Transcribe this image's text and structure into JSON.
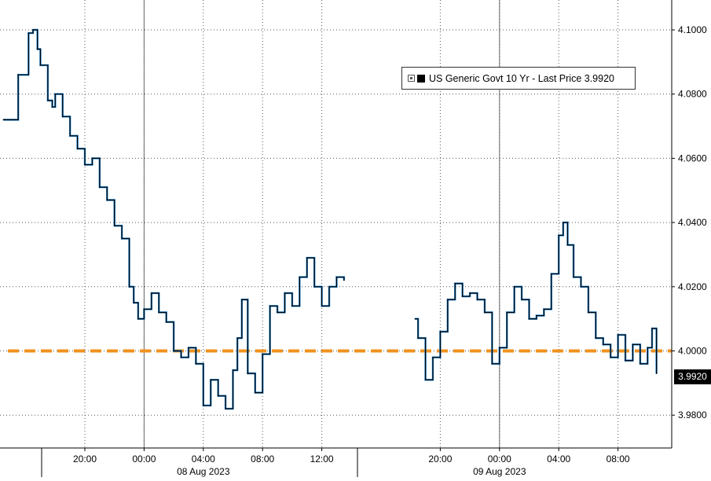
{
  "chart_data": {
    "type": "line",
    "legend": {
      "label": "US Generic Govt 10 Yr - Last Price 3.9920",
      "placement": "top-right"
    },
    "last_price_label": "3.9920",
    "y_ticks": [
      "4.1000",
      "4.0800",
      "4.0600",
      "4.0400",
      "4.0200",
      "4.0000",
      "3.9800"
    ],
    "ylim": [
      3.968,
      4.108
    ],
    "grid": true,
    "reference_line": {
      "value": 4.0,
      "color": "#f0921e",
      "style": "dashed"
    },
    "highlight_ellipse": {
      "x_hours": 45.5,
      "y": 4.0,
      "color": "#35d11f"
    },
    "colors": {
      "line": "#000000",
      "line_highlight": "#1f86d6",
      "grid": "#555555"
    },
    "x_tick_labels": [
      {
        "hours": 0,
        "label": "20:00"
      },
      {
        "hours": 4,
        "label": "00:00"
      },
      {
        "hours": 8,
        "label": "04:00"
      },
      {
        "hours": 12,
        "label": "08:00"
      },
      {
        "hours": 16,
        "label": "12:00"
      },
      {
        "hours": 24,
        "label": "20:00"
      },
      {
        "hours": 28,
        "label": "00:00"
      },
      {
        "hours": 32,
        "label": "04:00"
      },
      {
        "hours": 36,
        "label": "08:00"
      }
    ],
    "date_labels": [
      {
        "hours": 8,
        "label": "08 Aug 2023"
      },
      {
        "hours": 28,
        "label": "09 Aug 2023"
      }
    ],
    "segments": [
      {
        "name": "",
        "x": [
          -5.5,
          -4.5,
          -3.8,
          -3.5,
          -3.2,
          -3.0,
          -2.5,
          -2.2,
          -2.0,
          -1.5,
          -1.0,
          -0.5,
          0.0,
          0.5,
          1.0,
          1.5,
          2.0,
          2.5,
          3.0,
          3.3,
          3.6,
          4.0,
          4.5,
          5.0,
          5.5,
          6.0,
          6.5,
          7.0,
          7.5,
          8.0,
          8.5,
          9.0,
          9.5,
          10.0,
          10.3,
          10.6,
          11.0,
          11.5,
          12.0,
          12.5,
          13.0,
          13.5,
          14.0,
          14.5,
          15.0,
          15.5,
          16.0,
          16.5,
          17.0,
          17.5
        ],
        "y": [
          4.072,
          4.086,
          4.099,
          4.1,
          4.094,
          4.089,
          4.078,
          4.076,
          4.08,
          4.073,
          4.067,
          4.063,
          4.058,
          4.06,
          4.051,
          4.047,
          4.039,
          4.035,
          4.02,
          4.015,
          4.01,
          4.013,
          4.018,
          4.012,
          4.009,
          4.0,
          3.998,
          4.001,
          3.996,
          3.983,
          3.991,
          3.986,
          3.982,
          3.994,
          4.004,
          4.016,
          3.993,
          3.987,
          3.999,
          4.014,
          4.012,
          4.018,
          4.014,
          4.023,
          4.029,
          4.02,
          4.014,
          4.02,
          4.023,
          4.022
        ]
      },
      {
        "name": "",
        "x": [
          22.3,
          22.5,
          23.0,
          23.5,
          24.0,
          24.5,
          25.0,
          25.5,
          26.0,
          26.5,
          27.0,
          27.5,
          28.0,
          28.5,
          29.0,
          29.5,
          30.0,
          30.5,
          31.0,
          31.5,
          32.0,
          32.3,
          32.6,
          33.0,
          33.5,
          34.0,
          34.5,
          35.0,
          35.5,
          36.0,
          36.5,
          37.0,
          37.5,
          38.0,
          38.3,
          38.6
        ],
        "y": [
          4.01,
          4.004,
          3.991,
          3.998,
          4.006,
          4.016,
          4.021,
          4.017,
          4.018,
          4.016,
          4.012,
          3.996,
          4.001,
          4.012,
          4.02,
          4.016,
          4.01,
          4.011,
          4.013,
          4.024,
          4.036,
          4.04,
          4.033,
          4.023,
          4.02,
          4.012,
          4.004,
          4.002,
          3.998,
          4.005,
          3.997,
          4.002,
          3.996,
          4.001,
          4.007,
          3.993
        ]
      }
    ]
  }
}
